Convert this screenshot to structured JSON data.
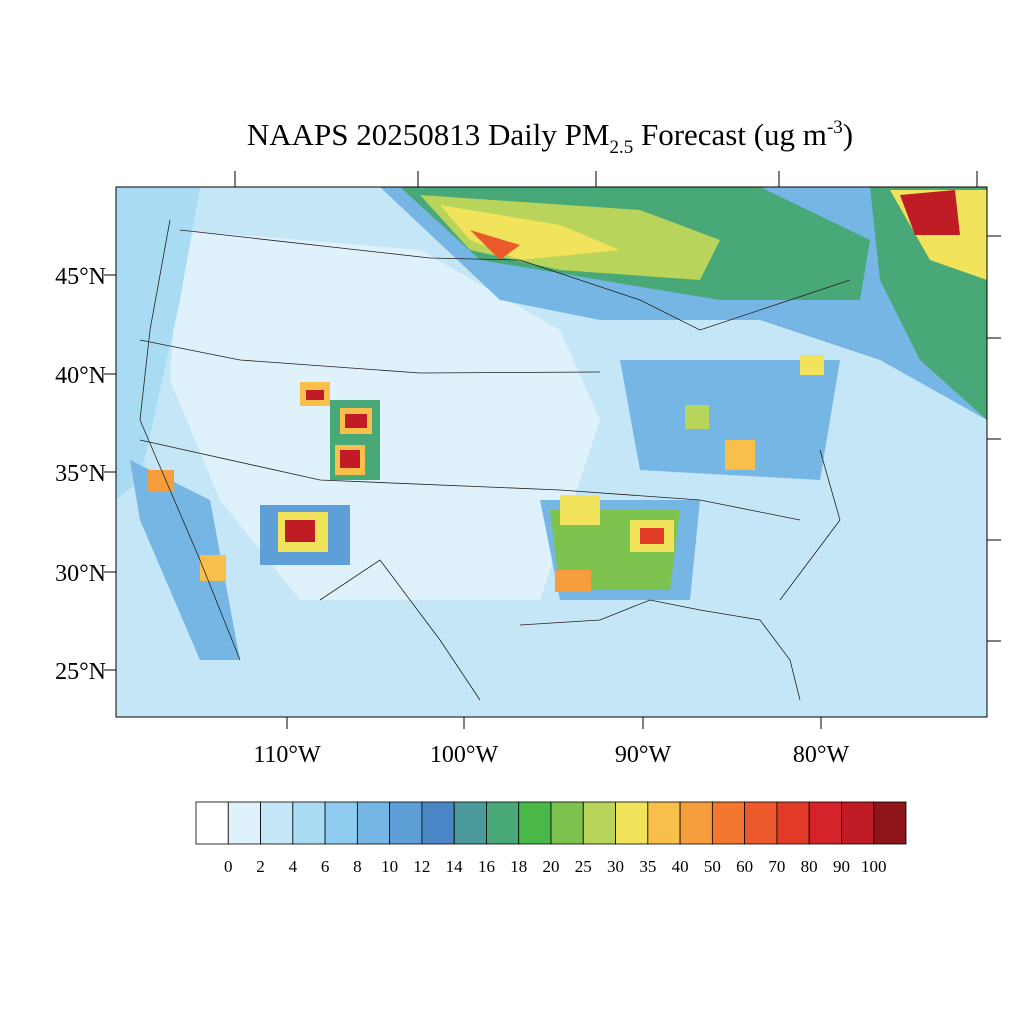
{
  "title": {
    "main": "NAAPS 20250813 Daily PM",
    "sub": "2.5",
    "middle": " Forecast (ug m",
    "sup": "-3",
    "end": ")"
  },
  "map": {
    "lat_labels": [
      "45°N",
      "40°N",
      "35°N",
      "30°N",
      "25°N"
    ],
    "lon_labels": [
      "110°W",
      "100°W",
      "90°W",
      "80°W"
    ]
  },
  "colorbar": {
    "colors": [
      "#ffffff",
      "#dff1fb",
      "#c5e6f7",
      "#a9dbf3",
      "#8ecbee",
      "#75b6e4",
      "#5e9fd8",
      "#4a86c5",
      "#4a9a9b",
      "#48a877",
      "#4ab749",
      "#7dc24f",
      "#b8d45a",
      "#f1e35c",
      "#f8c04b",
      "#f69e3e",
      "#f3772f",
      "#ec5a2b",
      "#e23c28",
      "#d4232b",
      "#c01c25",
      "#8d1418"
    ],
    "labels": [
      0,
      2,
      4,
      6,
      8,
      10,
      12,
      14,
      16,
      18,
      20,
      25,
      30,
      35,
      40,
      50,
      60,
      70,
      80,
      90,
      100
    ]
  }
}
